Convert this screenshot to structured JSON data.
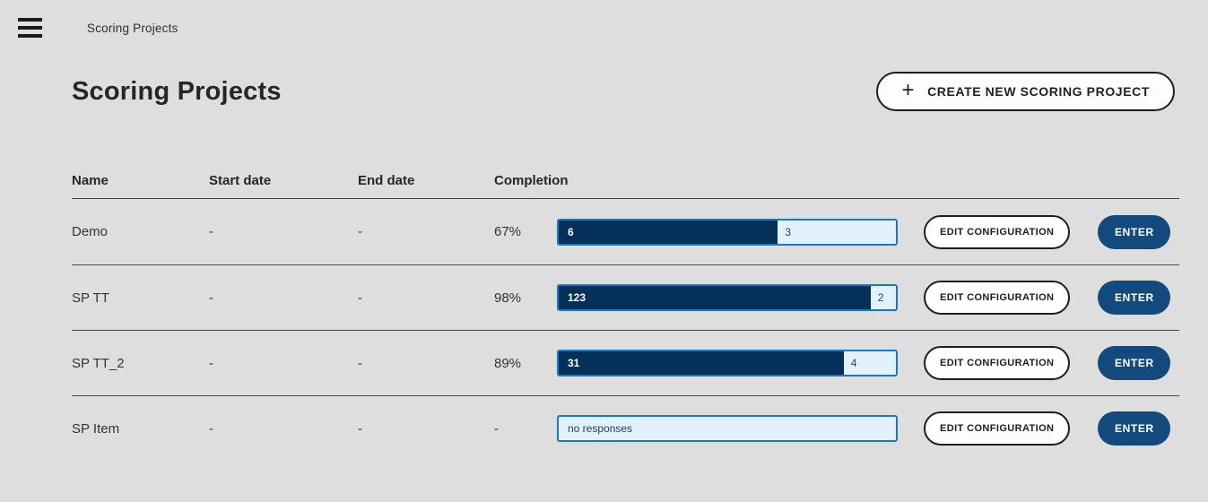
{
  "topbar": {
    "breadcrumb": "Scoring Projects"
  },
  "page": {
    "title": "Scoring Projects"
  },
  "create_button": {
    "plus": "+",
    "label": "CREATE NEW SCORING PROJECT"
  },
  "colors": {
    "background": "#dedede",
    "bar_dark": "#04305a",
    "bar_light": "#e2f1fc",
    "bar_border": "#1a77c4",
    "enter_button": "#134a7e",
    "outline_button_border": "#1e1e1e"
  },
  "table": {
    "columns": [
      "Name",
      "Start date",
      "End date",
      "Completion"
    ],
    "actions": {
      "edit_label": "EDIT CONFIGURATION",
      "enter_label": "ENTER"
    },
    "rows": [
      {
        "name": "Demo",
        "start_date": "-",
        "end_date": "-",
        "completion": "67%",
        "bar": {
          "type": "split",
          "done_count": "6",
          "remaining_count": "3",
          "fill_pct": 65
        }
      },
      {
        "name": "SP TT",
        "start_date": "-",
        "end_date": "-",
        "completion": "98%",
        "bar": {
          "type": "split",
          "done_count": "123",
          "remaining_count": "2",
          "fill_pct": 92.5
        }
      },
      {
        "name": "SP TT_2",
        "start_date": "-",
        "end_date": "-",
        "completion": "89%",
        "bar": {
          "type": "split",
          "done_count": "31",
          "remaining_count": "4",
          "fill_pct": 84.5
        }
      },
      {
        "name": "SP Item",
        "start_date": "-",
        "end_date": "-",
        "completion": "-",
        "bar": {
          "type": "empty",
          "label": "no responses"
        }
      }
    ]
  }
}
